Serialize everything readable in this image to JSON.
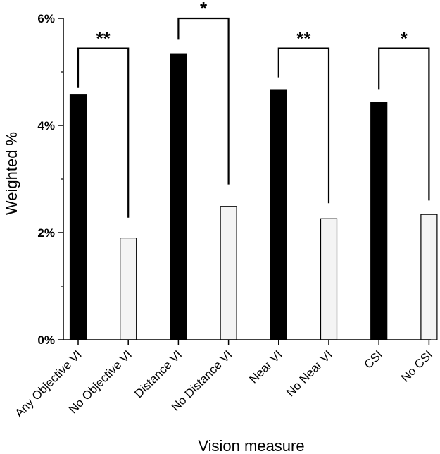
{
  "chart_data": {
    "type": "bar",
    "title": "",
    "xlabel": "Vision measure",
    "ylabel": "Weighted %",
    "ylim": [
      0,
      6
    ],
    "yticks": [
      {
        "value": 0,
        "label": "0%"
      },
      {
        "value": 2,
        "label": "2%"
      },
      {
        "value": 4,
        "label": "4%"
      },
      {
        "value": 6,
        "label": "6%"
      }
    ],
    "y_minor_ticks": [
      1,
      3,
      5
    ],
    "categories": [
      "Any Objective VI",
      "No Objective VI",
      "Distance VI",
      "No Distance VI",
      "Near VI",
      "No Near VI",
      "CSI",
      "No CSI"
    ],
    "values": [
      4.57,
      1.9,
      5.34,
      2.49,
      4.67,
      2.26,
      4.43,
      2.34
    ],
    "bar_colors": [
      "#000000",
      "#f4f4f4",
      "#000000",
      "#f4f4f4",
      "#000000",
      "#f4f4f4",
      "#000000",
      "#f4f4f4"
    ],
    "significance": [
      {
        "from": 0,
        "to": 1,
        "label": "**",
        "bracket_y": 5.44,
        "left_drop_end": 4.7,
        "right_drop_end": 2.28
      },
      {
        "from": 2,
        "to": 3,
        "label": "*",
        "bracket_y": 6.0,
        "left_drop_end": 5.6,
        "right_drop_end": 2.9
      },
      {
        "from": 4,
        "to": 5,
        "label": "**",
        "bracket_y": 5.44,
        "left_drop_end": 4.9,
        "right_drop_end": 2.55
      },
      {
        "from": 6,
        "to": 7,
        "label": "*",
        "bracket_y": 5.44,
        "left_drop_end": 4.68,
        "right_drop_end": 2.6
      }
    ]
  }
}
